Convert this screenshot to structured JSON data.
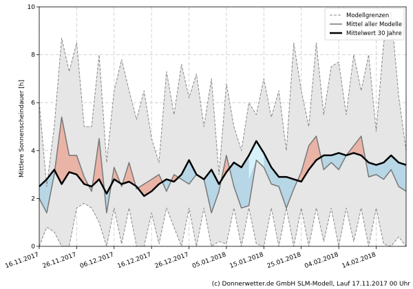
{
  "chart_data": {
    "type": "line",
    "ylabel": "Mittlere Sonnenscheindauer [h]",
    "ylim": [
      0,
      10
    ],
    "yticks": [
      0,
      2,
      4,
      6,
      8,
      10
    ],
    "x_start_date": "16.11.2017",
    "x_dates": [
      "16.11.2017",
      "26.11.2017",
      "06.12.2017",
      "16.12.2017",
      "26.12.2017",
      "05.01.2018",
      "15.01.2018",
      "25.01.2018",
      "04.02.2018",
      "14.02.2018"
    ],
    "x_tick_days": [
      0,
      10,
      20,
      30,
      40,
      50,
      60,
      70,
      80,
      90
    ],
    "x_range_days": [
      0,
      98
    ],
    "grid": true,
    "legend_position": "top-right",
    "legend": {
      "bounds": "Modellgrenzen",
      "model_mean": "Mittel aller Modelle",
      "climate_mean": "Mittelwert 30 Jahre"
    },
    "series": [
      {
        "name": "Mittelwert 30 Jahre",
        "days": [
          0,
          2,
          4,
          6,
          8,
          10,
          12,
          14,
          16,
          18,
          20,
          22,
          24,
          26,
          28,
          30,
          32,
          34,
          36,
          38,
          40,
          42,
          44,
          46,
          48,
          50,
          52,
          54,
          56,
          58,
          60,
          62,
          64,
          66,
          68,
          70,
          72,
          74,
          76,
          78,
          80,
          82,
          84,
          86,
          88,
          90,
          92,
          94,
          96,
          98
        ],
        "values": [
          2.5,
          2.8,
          3.2,
          2.6,
          3.1,
          3.0,
          2.6,
          2.5,
          2.8,
          2.2,
          2.8,
          2.6,
          2.7,
          2.5,
          2.1,
          2.3,
          2.6,
          2.8,
          2.7,
          3.0,
          3.6,
          3.0,
          2.8,
          3.2,
          2.6,
          3.1,
          3.5,
          3.3,
          3.8,
          4.4,
          3.9,
          3.3,
          2.9,
          2.9,
          2.8,
          2.7,
          3.2,
          3.6,
          3.8,
          3.8,
          3.9,
          3.8,
          3.9,
          3.8,
          3.5,
          3.4,
          3.5,
          3.8,
          3.5,
          3.4
        ]
      },
      {
        "name": "Mittel aller Modelle",
        "days": [
          0,
          2,
          4,
          6,
          8,
          10,
          12,
          14,
          16,
          18,
          20,
          22,
          24,
          26,
          28,
          30,
          32,
          34,
          36,
          38,
          40,
          42,
          44,
          46,
          48,
          50,
          52,
          54,
          56,
          58,
          60,
          62,
          64,
          66,
          68,
          70,
          72,
          74,
          76,
          78,
          80,
          82,
          84,
          86,
          88,
          90,
          92,
          94,
          96,
          98
        ],
        "values": [
          2.0,
          1.4,
          3.0,
          5.4,
          3.8,
          3.8,
          2.9,
          2.3,
          4.5,
          1.4,
          3.3,
          2.5,
          3.5,
          2.4,
          2.6,
          2.8,
          3.0,
          2.3,
          3.0,
          2.8,
          2.6,
          3.0,
          2.8,
          1.4,
          2.3,
          3.8,
          2.5,
          1.6,
          1.7,
          3.6,
          3.3,
          2.6,
          2.5,
          1.6,
          2.4,
          3.1,
          4.2,
          4.6,
          3.2,
          3.5,
          3.2,
          3.8,
          4.2,
          4.6,
          2.9,
          3.0,
          2.8,
          3.2,
          2.5,
          2.3
        ]
      },
      {
        "name": "Modellgrenzen (oben)",
        "days": [
          0,
          2,
          4,
          6,
          8,
          10,
          12,
          14,
          16,
          18,
          20,
          22,
          24,
          26,
          28,
          30,
          32,
          34,
          36,
          38,
          40,
          42,
          44,
          46,
          48,
          50,
          52,
          54,
          56,
          58,
          60,
          62,
          64,
          66,
          68,
          70,
          72,
          74,
          76,
          78,
          80,
          82,
          84,
          86,
          88,
          90,
          92,
          94,
          96,
          98
        ],
        "values": [
          6.0,
          2.5,
          5.0,
          8.7,
          7.3,
          8.5,
          5.0,
          5.0,
          8.0,
          3.5,
          6.5,
          7.8,
          6.5,
          5.3,
          6.5,
          4.5,
          3.5,
          7.3,
          5.5,
          7.6,
          6.2,
          7.2,
          5.0,
          7.0,
          3.0,
          6.8,
          5.0,
          4.0,
          6.0,
          5.5,
          7.0,
          5.4,
          6.5,
          4.0,
          8.5,
          6.5,
          5.0,
          8.5,
          5.5,
          7.5,
          7.7,
          5.5,
          8.0,
          6.5,
          8.0,
          4.8,
          8.5,
          9.8,
          6.3,
          4.0
        ]
      },
      {
        "name": "Modellgrenzen (unten)",
        "days": [
          0,
          2,
          4,
          6,
          8,
          10,
          12,
          14,
          16,
          18,
          20,
          22,
          24,
          26,
          28,
          30,
          32,
          34,
          36,
          38,
          40,
          42,
          44,
          46,
          48,
          50,
          52,
          54,
          56,
          58,
          60,
          62,
          64,
          66,
          68,
          70,
          72,
          74,
          76,
          78,
          80,
          82,
          84,
          86,
          88,
          90,
          92,
          94,
          96,
          98
        ],
        "values": [
          0.0,
          0.8,
          0.6,
          0.0,
          0.0,
          1.6,
          1.8,
          1.6,
          1.0,
          0.0,
          1.6,
          0.1,
          1.6,
          0.0,
          0.0,
          1.4,
          0.1,
          1.6,
          0.8,
          0.0,
          1.6,
          0.0,
          1.6,
          0.0,
          0.2,
          0.1,
          1.6,
          0.0,
          1.6,
          0.1,
          0.0,
          1.6,
          0.0,
          1.6,
          0.0,
          1.6,
          0.0,
          1.6,
          0.2,
          1.6,
          0.0,
          1.6,
          0.2,
          1.6,
          0.0,
          1.6,
          0.1,
          0.0,
          0.4,
          0.0
        ]
      }
    ],
    "colors": {
      "bounds_fill": "#e6e6e6",
      "bounds_line": "#888888",
      "model_line": "#777777",
      "climate_line": "#000000",
      "above_fill": "#e9b3a6",
      "below_fill": "#b7d6e6",
      "highlight_fill": "#d9f4fb",
      "grid": "#c8c8c8"
    },
    "credit": "(c) Donnerwetter.de GmbH SLM-Modell, Lauf 17.11.2017 00 Uhr"
  }
}
